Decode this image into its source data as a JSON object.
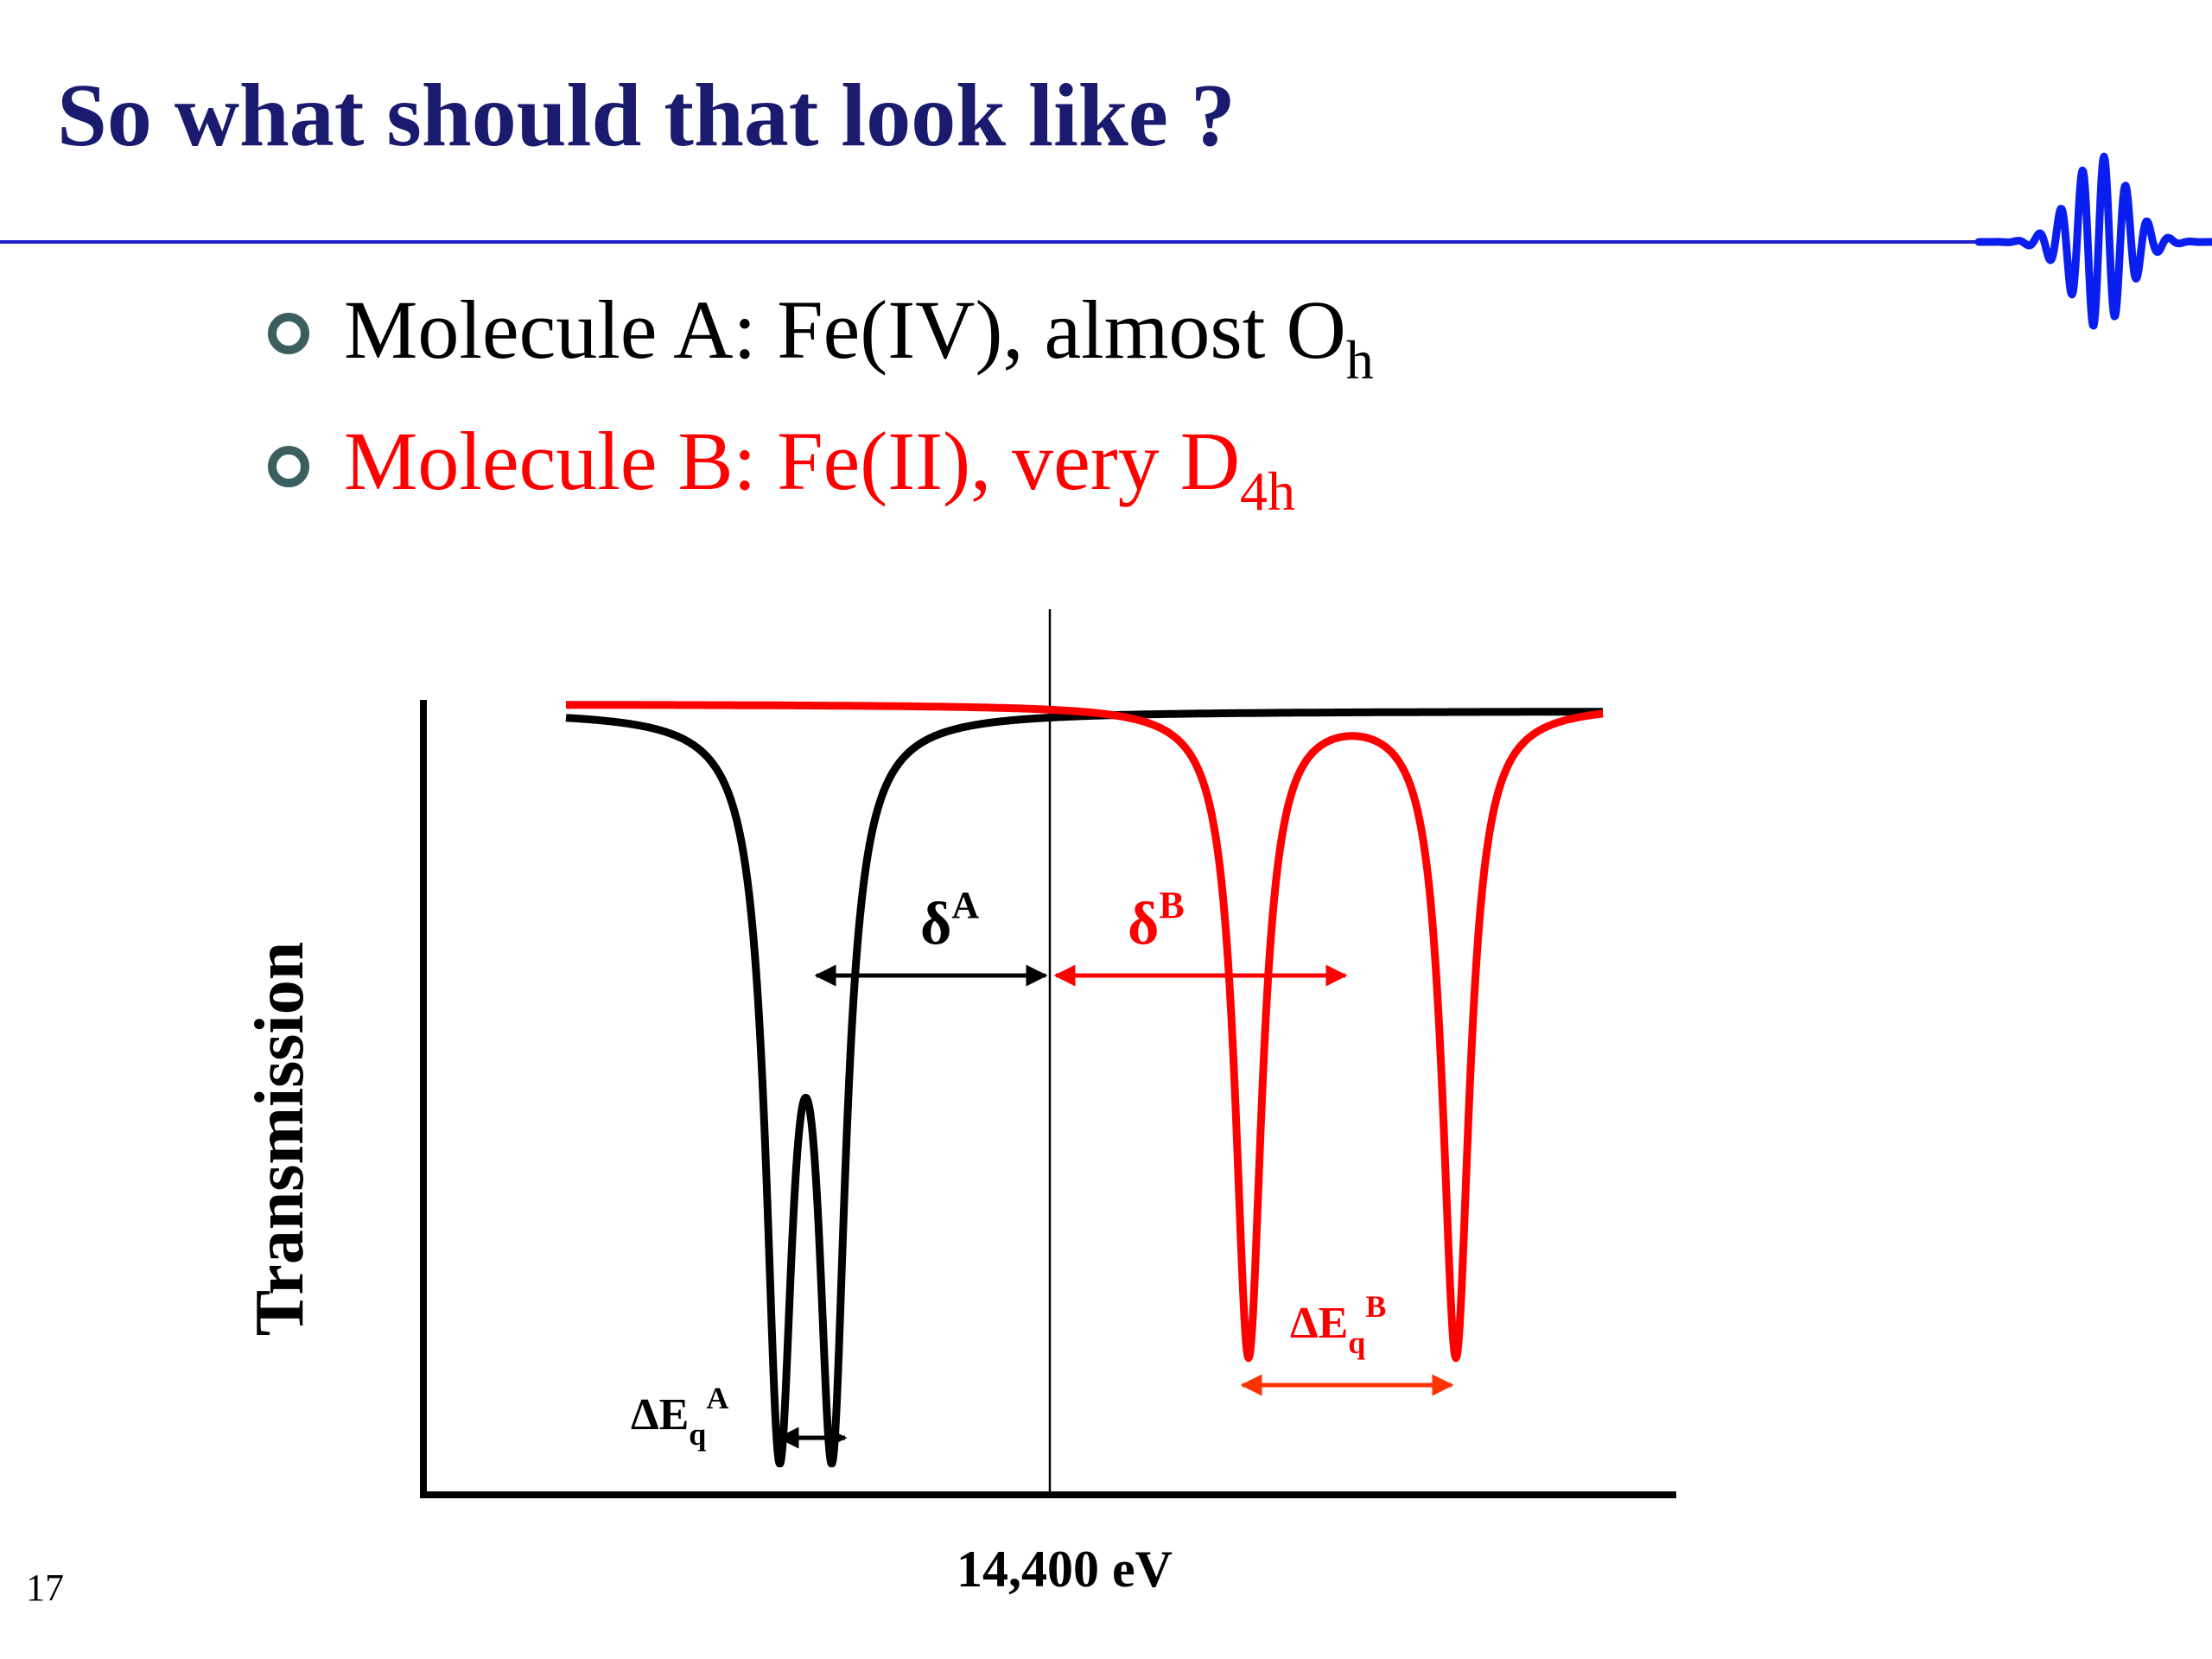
{
  "slide": {
    "title": "So what should that look like ?",
    "page_number": "17"
  },
  "colors": {
    "title": "#1a1a6e",
    "rule": "#2020c8",
    "wave": "#0a1ef0",
    "black": "#000000",
    "red": "#ff0000",
    "orange_red": "#ff3300",
    "bullet_ring": "#3b5f5f"
  },
  "bullets": [
    {
      "main": "Molecule A: Fe(IV), almost O",
      "sub": "h",
      "color": "#000000"
    },
    {
      "main": "Molecule B: Fe(II), very D",
      "sub": "4h",
      "color": "#ff0000"
    }
  ],
  "diagram": {
    "y_axis_label": "Transmission",
    "x_tick_label": "14,400 eV",
    "delta_a": {
      "main": "δ",
      "sup": "A"
    },
    "delta_b": {
      "main": "δ",
      "sup": "B"
    },
    "deq_a": {
      "main": "ΔE",
      "sub": "q",
      "sup": "A"
    },
    "deq_b": {
      "main": "ΔE",
      "sub": "q",
      "sup": "B"
    }
  },
  "icons": {
    "wave": "wave-packet-icon",
    "bullet": "ring-bullet-icon"
  }
}
